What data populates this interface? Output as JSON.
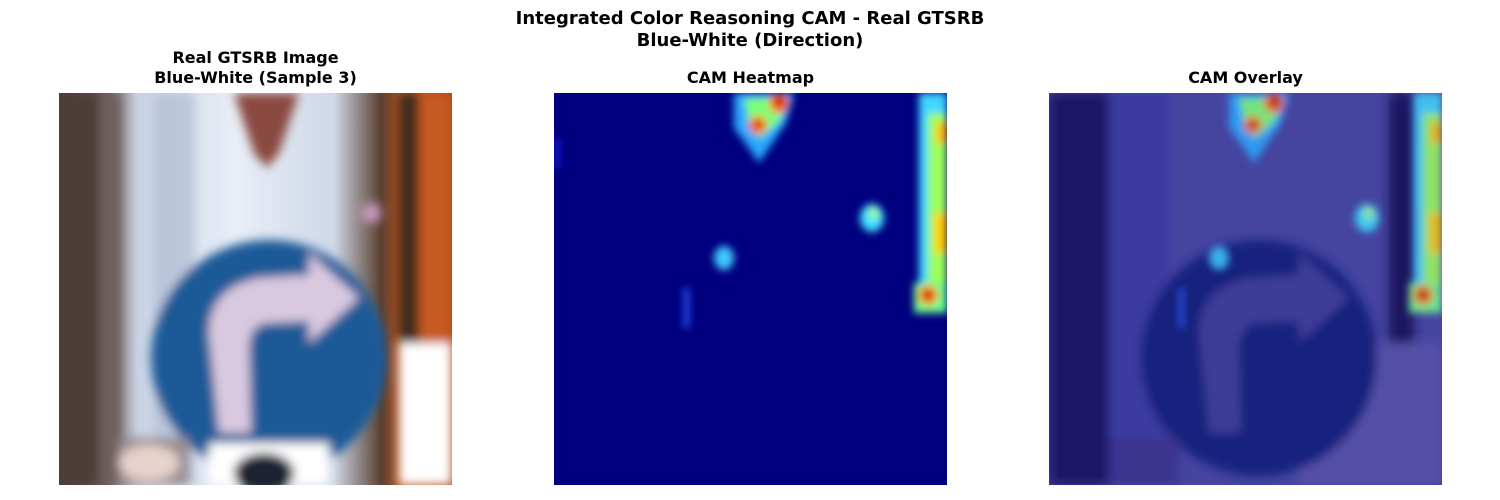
{
  "figure": {
    "title_line1": "Integrated Color Reasoning CAM - Real GTSRB",
    "title_line2": "Blue-White (Direction)"
  },
  "panels": [
    {
      "title_line1": "Real GTSRB Image",
      "title_line2": "Blue-White (Sample 3)"
    },
    {
      "title_line1": "CAM Heatmap"
    },
    {
      "title_line1": "CAM Overlay"
    }
  ],
  "colors": {
    "sign_blue": "#1f5a97",
    "arrow": "#d9c9e0",
    "background_light": "#dfe6f2",
    "frame_orange": "#c5561e",
    "heatmap_base": "#00007f"
  }
}
